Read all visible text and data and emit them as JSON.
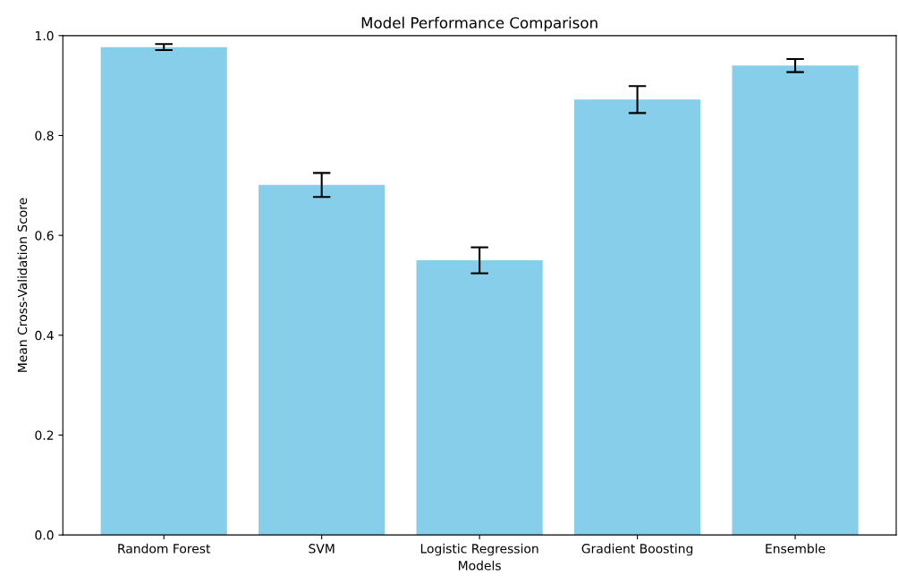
{
  "chart_data": {
    "type": "bar",
    "title": "Model Performance Comparison",
    "xlabel": "Models",
    "ylabel": "Mean Cross-Validation Score",
    "categories": [
      "Random Forest",
      "SVM",
      "Logistic Regression",
      "Gradient Boosting",
      "Ensemble"
    ],
    "values": [
      0.977,
      0.701,
      0.55,
      0.872,
      0.94
    ],
    "errors": [
      0.006,
      0.024,
      0.026,
      0.027,
      0.013
    ],
    "color": "#87ceeb",
    "ylim": [
      0,
      1.0
    ],
    "yticks": [
      {
        "value": 0,
        "label": "0.0"
      },
      {
        "value": 0.2,
        "label": "0.2"
      },
      {
        "value": 0.4,
        "label": "0.4"
      },
      {
        "value": 0.6,
        "label": "0.6"
      },
      {
        "value": 0.8,
        "label": "0.8"
      },
      {
        "value": 1.0,
        "label": "1.0"
      }
    ],
    "grid": false
  }
}
